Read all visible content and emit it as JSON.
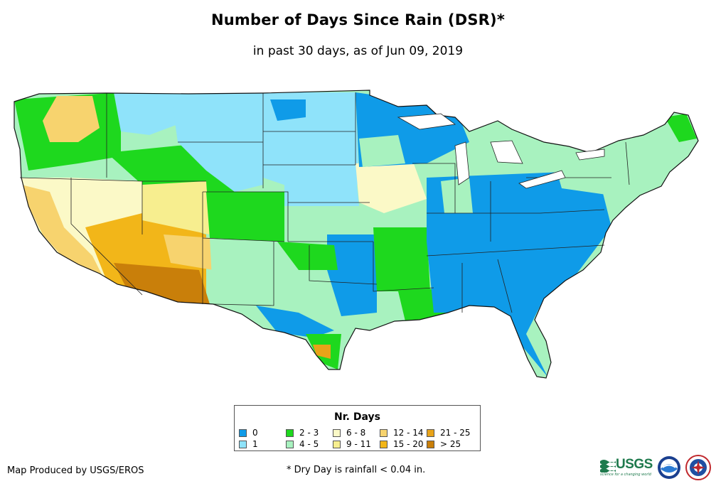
{
  "title": "Number of Days Since Rain (DSR)*",
  "subtitle": "in past 30 days, as of Jun 09, 2019",
  "legend": {
    "title": "Nr. Days",
    "items": [
      {
        "label": "0",
        "color": "#0f9be8"
      },
      {
        "label": "1",
        "color": "#8fe3fa"
      },
      {
        "label": "2 - 3",
        "color": "#1ed81e"
      },
      {
        "label": "4 - 5",
        "color": "#a8f2bf"
      },
      {
        "label": "6 - 8",
        "color": "#fbf9c7"
      },
      {
        "label": "9 - 11",
        "color": "#f7ee8f"
      },
      {
        "label": "12 - 14",
        "color": "#f7d36e"
      },
      {
        "label": "15 - 20",
        "color": "#f2b619"
      },
      {
        "label": "21 - 25",
        "color": "#e8a319"
      },
      {
        "label": "> 25",
        "color": "#c97f0a"
      }
    ]
  },
  "credit": "Map Produced by USGS/EROS",
  "footnote": "* Dry Day is rainfall < 0.04 in.",
  "logos": {
    "usgs_text": "USGS",
    "usgs_tagline": "science for a changing world"
  }
}
